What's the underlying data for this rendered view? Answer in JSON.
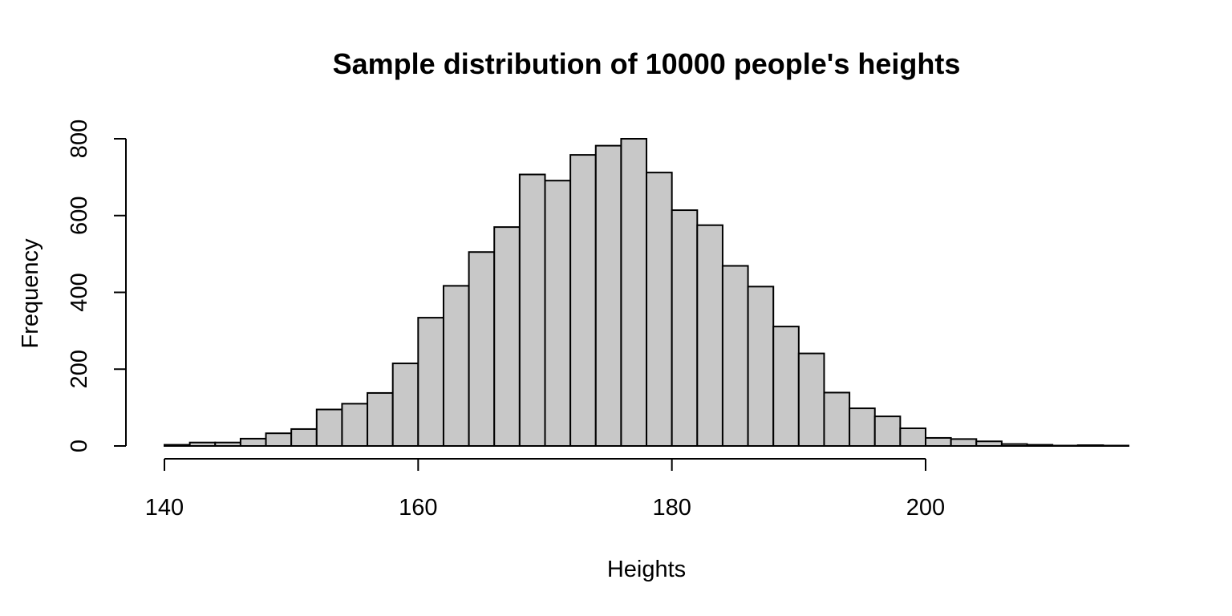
{
  "chart_data": {
    "type": "bar",
    "title": "Sample distribution of 10000 people's heights",
    "xlabel": "Heights",
    "ylabel": "Frequency",
    "bin_width": 2,
    "bin_edges_start": 140,
    "bin_edges_end": 216,
    "values": [
      3,
      9,
      9,
      19,
      33,
      44,
      95,
      110,
      138,
      215,
      334,
      417,
      505,
      570,
      707,
      691,
      758,
      782,
      800,
      712,
      614,
      575,
      469,
      415,
      311,
      241,
      139,
      98,
      77,
      46,
      21,
      18,
      12,
      5,
      3,
      1,
      2,
      1
    ],
    "xlim": [
      140,
      200
    ],
    "ylim": [
      0,
      800
    ],
    "x_ticks": [
      140,
      160,
      180,
      200
    ],
    "y_ticks": [
      0,
      200,
      400,
      600,
      800
    ],
    "grid": false,
    "bar_color": "#c8c8c8",
    "edge_color": "#000000"
  }
}
